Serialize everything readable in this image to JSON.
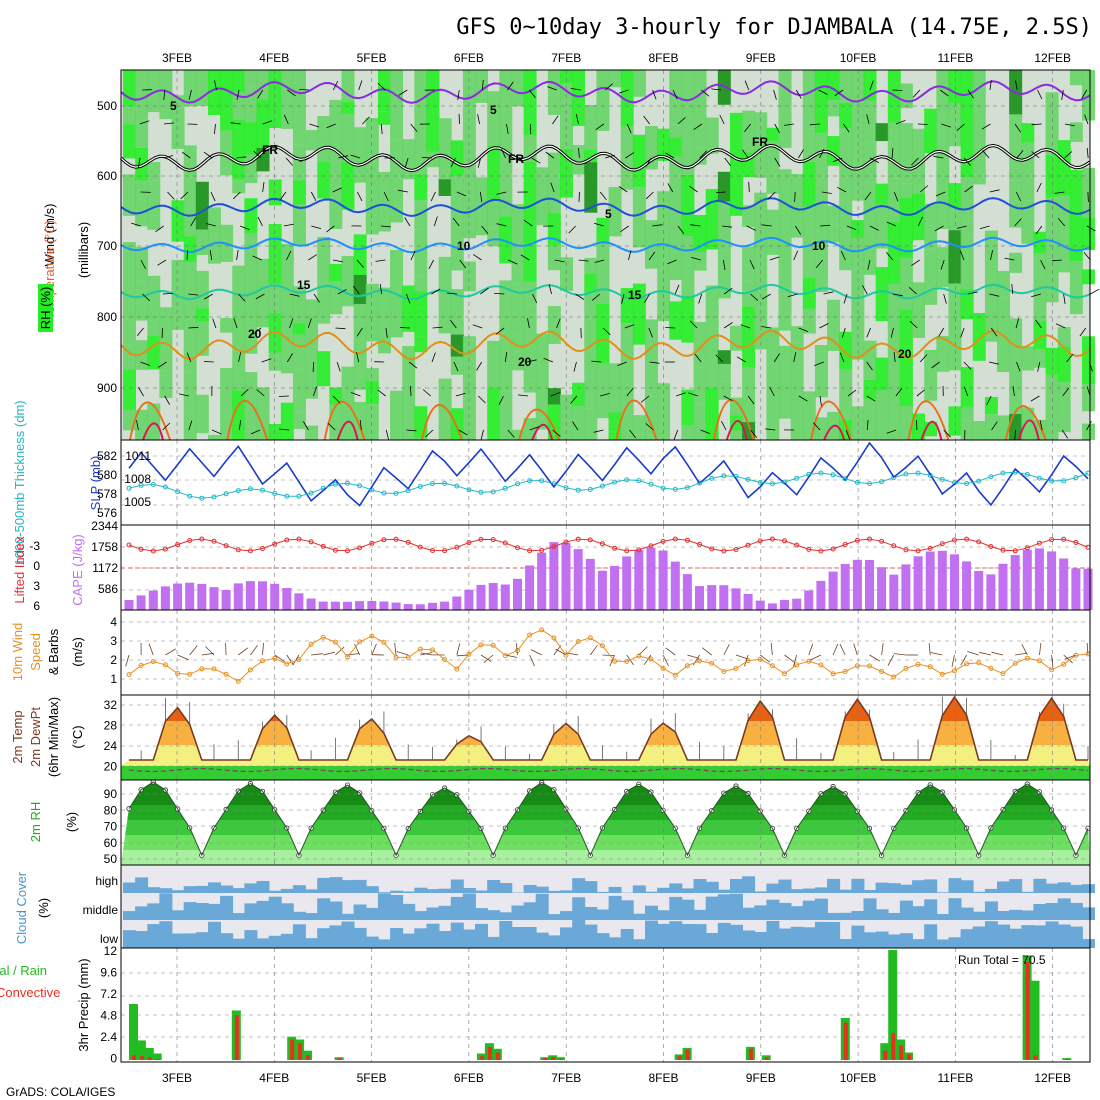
{
  "title": "GFS 0~10day 3-hourly for DJAMBALA (14.75E, 2.5S)",
  "credit": "GrADS: COLA/IGES",
  "dates": [
    "3FEB",
    "4FEB",
    "5FEB",
    "6FEB",
    "7FEB",
    "8FEB",
    "9FEB",
    "10FEB",
    "11FEB",
    "12FEB"
  ],
  "colors": {
    "rh_light": "#d4dfd4",
    "rh_mid": "#66d466",
    "rh_bright": "#22ee22",
    "rh_dark": "#159015",
    "wind5": "#8a2be2",
    "freezing": "#000000",
    "t5": "#1e50d8",
    "t10": "#1e90ff",
    "t15": "#20c8a0",
    "t20": "#e09018",
    "t25": "#e8701a",
    "t30": "#e0105a",
    "slp": "#1a3cc8",
    "thickness": "#20b8c8",
    "li": "#e03030",
    "cape": "#c070f0",
    "wind10m": "#e89020",
    "temp_line": "#7a3a20",
    "dew_line": "#804060",
    "rain_total": "#22bb22",
    "rain_conv": "#e83020",
    "cloud": "#6aa8d8",
    "cloud_bg": "#e8e8ee"
  },
  "panels": {
    "upper": {
      "ylabel": "(millibars)",
      "label_rh": "RH (%)",
      "label_temp": "Temperature (°C)",
      "label_wind": "Wind (m/s)",
      "yticks": [
        "500",
        "600",
        "700",
        "800",
        "900"
      ],
      "contour_labels": [
        "5",
        "5",
        "FR",
        "FR",
        "FR",
        "5",
        "10",
        "10",
        "15",
        "15",
        "20",
        "20",
        "20"
      ]
    },
    "slp": {
      "label_left": "1000-500mb Thickness (dm)",
      "label_right": "SLP (mb)",
      "left_ticks": [
        "582",
        "580",
        "578",
        "576"
      ],
      "right_ticks": [
        "1011",
        "1008",
        "1005"
      ]
    },
    "cape": {
      "label_left": "Lifted Index",
      "label_right": "CAPE (J/kg)",
      "left_ticks": [
        "-3",
        "0",
        "3",
        "6"
      ],
      "right_ticks": [
        "2344",
        "1758",
        "1172",
        "586"
      ]
    },
    "wind10": {
      "label1": "10m Wind",
      "label2": "Speed",
      "label3": "& Barbs",
      "unit": "(m/s)",
      "yticks": [
        "4",
        "3",
        "2",
        "1"
      ]
    },
    "temp2m": {
      "label1": "2m Temp",
      "label2": "2m DewPt",
      "label3": "(6hr Min/Max)",
      "unit": "(°C)",
      "yticks": [
        "32",
        "28",
        "24",
        "20"
      ]
    },
    "rh2m": {
      "label": "2m RH",
      "unit": "(%)",
      "yticks": [
        "90",
        "80",
        "70",
        "60",
        "50"
      ]
    },
    "cloud": {
      "label": "Cloud Cover",
      "unit": "(%)",
      "rows": [
        "high",
        "middle",
        "low"
      ]
    },
    "precip": {
      "label_left1": "Total / Rain",
      "label_left2": "Convective",
      "label_axis": "3hr Precip (mm)",
      "yticks": [
        "12",
        "9.6",
        "7.2",
        "4.8",
        "2.4",
        "0"
      ],
      "run_total": "Run Total = 70.5"
    }
  },
  "chart_data": [
    {
      "type": "line",
      "title": "SLP (mb)",
      "x": [
        "3FEB",
        "4FEB",
        "5FEB",
        "6FEB",
        "7FEB",
        "8FEB",
        "9FEB",
        "10FEB",
        "11FEB",
        "12FEB"
      ],
      "series": [
        {
          "name": "SLP (mb)",
          "values": [
            1009.5,
            1010.5,
            1006,
            1010.5,
            1009,
            1010.8,
            1007,
            1011,
            1006.5,
            1010
          ]
        },
        {
          "name": "1000-500mb Thickness (dm)",
          "values": [
            577,
            576,
            577,
            577,
            577.5,
            577.5,
            578.5,
            578.5,
            578.5,
            579
          ]
        }
      ]
    },
    {
      "type": "bar",
      "title": "CAPE (J/kg)",
      "x": [
        "3FEB",
        "4FEB",
        "5FEB",
        "6FEB",
        "7FEB",
        "8FEB",
        "9FEB",
        "10FEB",
        "11FEB",
        "12FEB"
      ],
      "series": [
        {
          "name": "CAPE (J/kg)",
          "values": [
            500,
            1000,
            250,
            250,
            1900,
            1700,
            150,
            1700,
            1600,
            1800
          ]
        },
        {
          "name": "Lifted Index",
          "values": [
            -2,
            -2,
            -2,
            -2,
            -3,
            -3,
            -2,
            -2,
            -3,
            -3
          ]
        }
      ]
    },
    {
      "type": "line",
      "title": "10m Wind Speed (m/s)",
      "x": [
        "3FEB",
        "4FEB",
        "5FEB",
        "6FEB",
        "7FEB",
        "8FEB",
        "9FEB",
        "10FEB",
        "11FEB",
        "12FEB"
      ],
      "values": [
        2.2,
        1.5,
        3.8,
        2.5,
        4.0,
        2.0,
        2.2,
        1.8,
        2.0,
        2.5
      ]
    },
    {
      "type": "area",
      "title": "2m Temp (°C)",
      "x": [
        "3FEB",
        "4FEB",
        "5FEB",
        "6FEB",
        "7FEB",
        "8FEB",
        "9FEB",
        "10FEB",
        "11FEB",
        "12FEB"
      ],
      "series": [
        {
          "name": "2m Temp",
          "values": [
            31,
            28,
            29,
            24.5,
            27,
            27,
            31,
            31,
            31.5,
            31
          ]
        },
        {
          "name": "2m DewPt",
          "values": [
            19.5,
            19.5,
            19.5,
            19.5,
            19.8,
            19.8,
            19.8,
            19.8,
            20,
            20
          ]
        }
      ]
    },
    {
      "type": "area",
      "title": "2m RH (%)",
      "x": [
        "3FEB",
        "4FEB",
        "5FEB",
        "6FEB",
        "7FEB",
        "8FEB",
        "9FEB",
        "10FEB",
        "11FEB",
        "12FEB"
      ],
      "values": [
        93,
        92,
        91,
        89,
        93,
        91,
        90,
        90,
        92,
        91
      ]
    },
    {
      "type": "bar",
      "title": "3hr Precip (mm)",
      "x": [
        "3FEB",
        "4FEB",
        "5FEB",
        "6FEB",
        "7FEB",
        "8FEB",
        "9FEB",
        "10FEB",
        "11FEB",
        "12FEB"
      ],
      "series": [
        {
          "name": "Total / Rain",
          "values": [
            6.0,
            5.3,
            2.5,
            0.3,
            2.0,
            0.6,
            1.3,
            1.4,
            11.8,
            11.2
          ]
        },
        {
          "name": "Convective",
          "values": [
            0.5,
            4.5,
            2.2,
            0.1,
            1.5,
            0.3,
            1.2,
            1.2,
            3.0,
            10.5
          ]
        }
      ],
      "ylim": [
        0,
        12
      ]
    }
  ]
}
